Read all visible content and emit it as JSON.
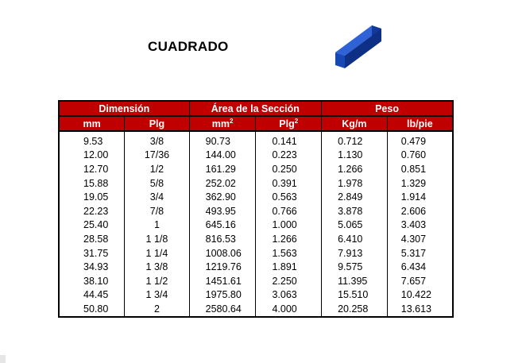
{
  "title": "CUADRADO",
  "icon": "square-steel-bar-icon",
  "colors": {
    "header_bg": "#c00000",
    "header_text": "#ffffff",
    "bar_blue": "#1747b4"
  },
  "table": {
    "groups": [
      "Dimensión",
      "Área de la Sección",
      "Peso"
    ],
    "units": [
      {
        "base": "mm",
        "sup": ""
      },
      {
        "base": "Plg",
        "sup": ""
      },
      {
        "base": "mm",
        "sup": "2"
      },
      {
        "base": "Plg",
        "sup": "2"
      },
      {
        "base": "Kg/m",
        "sup": ""
      },
      {
        "base": "lb/pie",
        "sup": ""
      }
    ],
    "rows": [
      [
        "9.53",
        "3/8",
        "90.73",
        "0.141",
        "0.712",
        "0.479"
      ],
      [
        "12.00",
        "17/36",
        "144.00",
        "0.223",
        "1.130",
        "0.760"
      ],
      [
        "12.70",
        "1/2",
        "161.29",
        "0.250",
        "1.266",
        "0.851"
      ],
      [
        "15.88",
        "5/8",
        "252.02",
        "0.391",
        "1.978",
        "1.329"
      ],
      [
        "19.05",
        "3/4",
        "362.90",
        "0.563",
        "2.849",
        "1.914"
      ],
      [
        "22.23",
        "7/8",
        "493.95",
        "0.766",
        "3.878",
        "2.606"
      ],
      [
        "25.40",
        "1",
        "645.16",
        "1.000",
        "5.065",
        "3.403"
      ],
      [
        "28.58",
        "1 1/8",
        "816.53",
        "1.266",
        "6.410",
        "4.307"
      ],
      [
        "31.75",
        "1 1/4",
        "1008.06",
        "1.563",
        "7.913",
        "5.317"
      ],
      [
        "34.93",
        "1 3/8",
        "1219.76",
        "1.891",
        "9.575",
        "6.434"
      ],
      [
        "38.10",
        "1 1/2",
        "1451.61",
        "2.250",
        "11.395",
        "7.657"
      ],
      [
        "44.45",
        "1 3/4",
        "1975.80",
        "3.063",
        "15.510",
        "10.422"
      ],
      [
        "50.80",
        "2",
        "2580.64",
        "4.000",
        "20.258",
        "13.613"
      ]
    ]
  }
}
